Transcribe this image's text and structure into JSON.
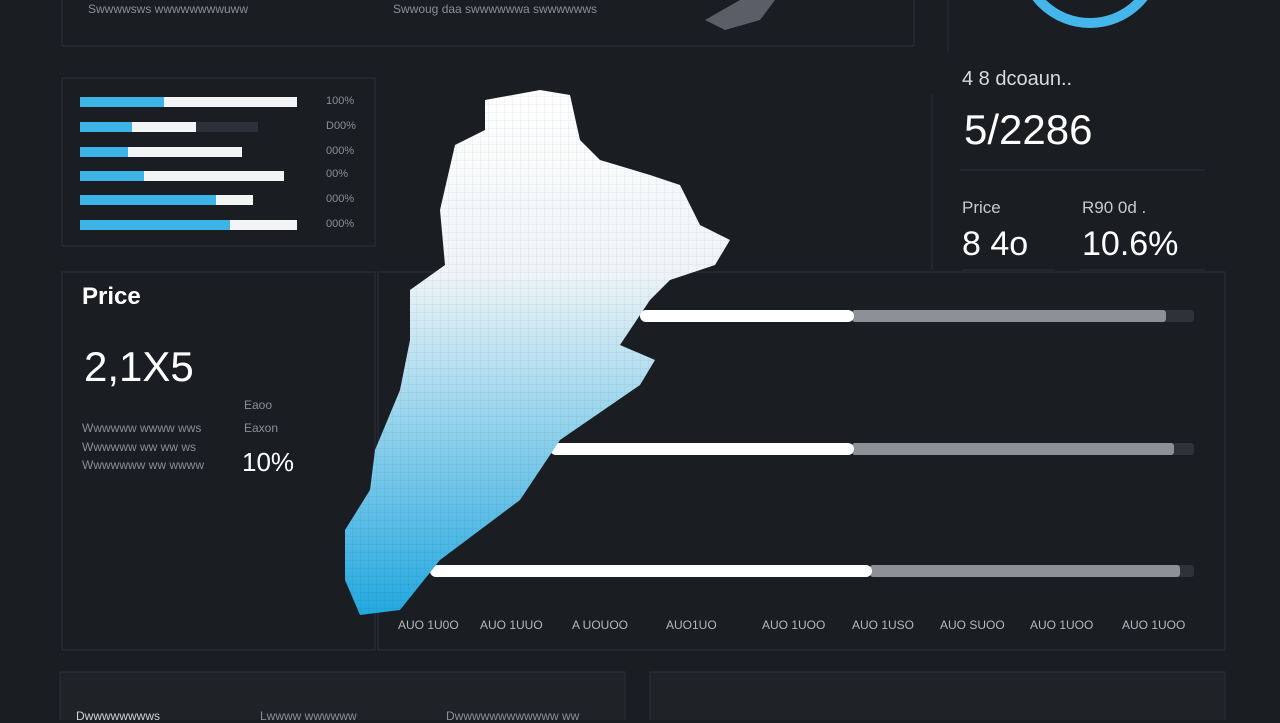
{
  "top_panel": {
    "texts": [
      "Swwwwsws wwwwwwwwuww",
      "Swwoug daa swwwwwwa swwwwwws"
    ]
  },
  "progress_list": {
    "labels": [
      "100%",
      "D00%",
      "000%",
      "00%",
      "000%",
      "000%"
    ]
  },
  "price_card": {
    "title": "Price",
    "value": "2,1X5",
    "notes": [
      "Wwwwww wwww wws",
      "Wwwwww ww ww ws",
      "Wwwwwww ww wwww"
    ],
    "change_labels": [
      "Eaoo",
      "Eaxon"
    ],
    "change": "10%"
  },
  "stats_card": {
    "title": "4 8 dcoaun..",
    "value": "5/2286",
    "items": [
      {
        "label": "Price",
        "value": "8 4o"
      },
      {
        "label": "R90 0d .",
        "value": "10.6%"
      }
    ]
  },
  "axis_labels": [
    "AUO 1U0O",
    "AUO 1UUO",
    "A UOUOO",
    "AUO1UO",
    "AUO 1UOO",
    "AUO 1USO",
    "AUO SUOO",
    "AUO 1UOO",
    "AUO 1UOO"
  ],
  "bottom_panel": {
    "texts": [
      "Dwwwwwwwws",
      "Lwwww wwwwww",
      "Dwwwwwwwwwwww ww"
    ]
  }
}
